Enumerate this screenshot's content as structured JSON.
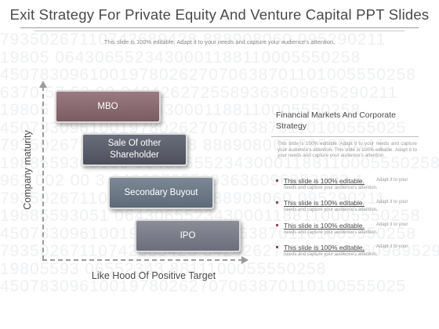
{
  "title": "Exit Strategy For Private Equity And Venture Capital PPT Slides",
  "subtitle": "This slide is 100% editable. Adapt it to your needs and capture your audience's attention.",
  "background_numbers": [
    "79350267110742689428 888908060 095290211",
    "19805 0643065523430001188110005550258",
    "450783096100197802627070638701101005550258",
    "6370 57 52 02 3424262725589363609695290211",
    "19805 0643065523430001188110005550258",
    "45078309610019780262707063870110100555025",
    "79350267110742689428 888908060 095290211",
    "1988559305106 0643065523430001188110005550258",
    "961 002 00 3 242627255893636096952902 1",
    "79350267110742689428 888908060 095290211",
    "19885593051 0643065523430001188110005550258",
    "450783096100197802627070638701101005550258",
    "79350267110742689428 3424262725589363609695290211",
    "19805593 06552343 8811100055550258",
    "45078309610019780262707063870110100555025"
  ],
  "diagram": {
    "y_axis_label": "Company maturity",
    "x_axis_label": "Like Hood Of  Positive Target",
    "steps": [
      {
        "label": "MBO"
      },
      {
        "label": "Sale Of other Shareholder"
      },
      {
        "label": "Secondary  Buyout"
      },
      {
        "label": "IPO"
      }
    ]
  },
  "right_panel": {
    "title": "Financial Markets And Corporate Strategy",
    "body": "This slide is 100% editable. Adapt it to your needs and capture your audience's attention. This slide is 100% editable. Adapt it to your needs and capture your audience's attention.",
    "items": [
      {
        "head": "This slide is 100% editable.",
        "tail": "Adapt it to your",
        "line2": "needs and capture your audience's attention."
      },
      {
        "head": "This slide is 100% editable.",
        "tail": "Adapt it to your",
        "line2": "needs and capture your audience's attention."
      },
      {
        "head": "This slide is 100% editable.",
        "tail": "Adapt it to your",
        "line2": "needs and capture your audience's attention."
      },
      {
        "head": "This slide is 100% editable.",
        "tail": "Adapt it to your",
        "line2": "needs and capture your audience's attention."
      }
    ]
  },
  "colors": {
    "step_1": "#8a6c72",
    "step_2": "#5c5f6b",
    "step_3": "#6d7987",
    "step_4": "#7b7e8a",
    "bullet": "#8a4a55"
  }
}
